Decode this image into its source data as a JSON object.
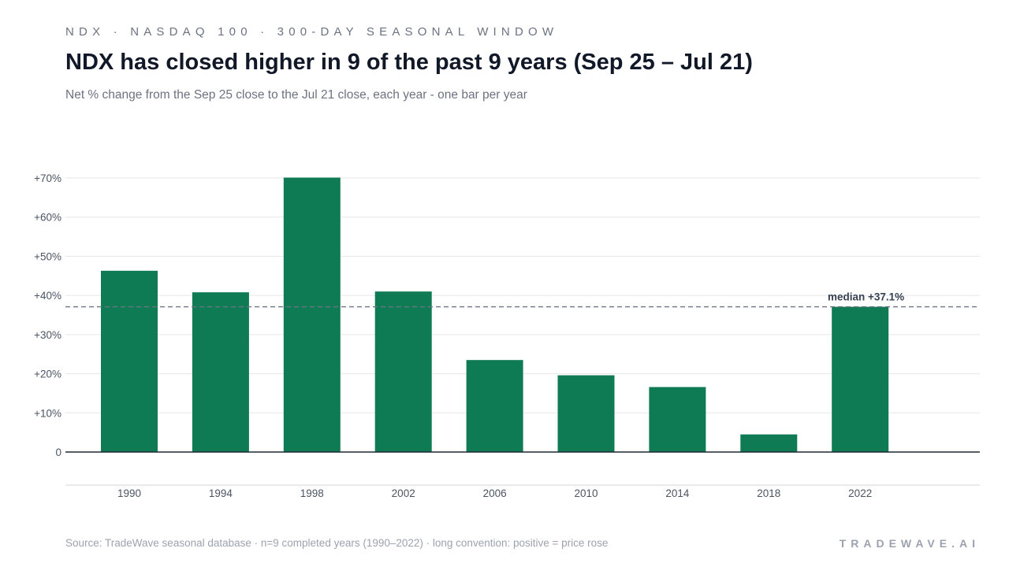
{
  "header": {
    "kicker": "NDX · NASDAQ 100 · 300-DAY SEASONAL WINDOW",
    "title": "NDX has closed higher in 9 of the past 9 years (Sep 25 – Jul 21)",
    "subtitle": "Net % change from the Sep 25 close to the Jul 21 close, each year - one bar per year"
  },
  "footer": {
    "source": "Source: TradeWave seasonal database · n=9 completed years (1990–2022) · long convention: positive = price rose",
    "brand": "TRADEWAVE.AI"
  },
  "chart_data": {
    "type": "bar",
    "categories": [
      "1990",
      "1994",
      "1998",
      "2002",
      "2006",
      "2010",
      "2014",
      "2018",
      "2022"
    ],
    "values": [
      46.3,
      40.8,
      70.1,
      41.0,
      23.5,
      19.6,
      16.6,
      4.5,
      37.1
    ],
    "ylim": [
      0,
      70
    ],
    "yticks": [
      0,
      10,
      20,
      30,
      40,
      50,
      60,
      70
    ],
    "ytick_labels": [
      "0",
      "+10%",
      "+20%",
      "+30%",
      "+40%",
      "+50%",
      "+60%",
      "+70%"
    ],
    "median": 37.1,
    "median_label": "median +37.1%",
    "grid": true,
    "colors": {
      "bar": "#0f7b55",
      "grid": "#e5e7eb",
      "baseline": "#1f2937",
      "median_line": "#6b7280",
      "median_text": "#374151",
      "tick_text": "#4b5563"
    }
  }
}
